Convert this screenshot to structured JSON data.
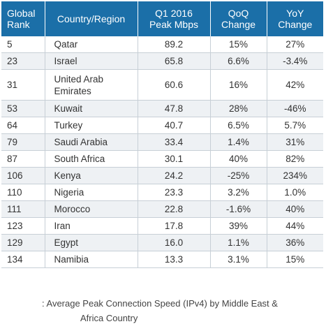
{
  "header": {
    "rank": [
      "Global",
      "Rank"
    ],
    "country": "Country/Region",
    "peak": [
      "Q1 2016",
      "Peak Mbps"
    ],
    "qoq": [
      "QoQ",
      "Change"
    ],
    "yoy": [
      "YoY",
      "Change"
    ]
  },
  "rows": [
    {
      "rank": "5",
      "country": [
        "Qatar"
      ],
      "peak": "89.2",
      "qoq": "15%",
      "yoy": "27%"
    },
    {
      "rank": "23",
      "country": [
        "Israel"
      ],
      "peak": "65.8",
      "qoq": "6.6%",
      "yoy": "-3.4%"
    },
    {
      "rank": "31",
      "country": [
        "United Arab",
        "Emirates"
      ],
      "peak": "60.6",
      "qoq": "16%",
      "yoy": "42%"
    },
    {
      "rank": "53",
      "country": [
        "Kuwait"
      ],
      "peak": "47.8",
      "qoq": "28%",
      "yoy": "-46%"
    },
    {
      "rank": "64",
      "country": [
        "Turkey"
      ],
      "peak": "40.7",
      "qoq": "6.5%",
      "yoy": "5.7%"
    },
    {
      "rank": "79",
      "country": [
        "Saudi Arabia"
      ],
      "peak": "33.4",
      "qoq": "1.4%",
      "yoy": "31%"
    },
    {
      "rank": "87",
      "country": [
        "South Africa"
      ],
      "peak": "30.1",
      "qoq": "40%",
      "yoy": "82%"
    },
    {
      "rank": "106",
      "country": [
        "Kenya"
      ],
      "peak": "24.2",
      "qoq": "-25%",
      "yoy": "234%"
    },
    {
      "rank": "110",
      "country": [
        "Nigeria"
      ],
      "peak": "23.3",
      "qoq": "3.2%",
      "yoy": "1.0%"
    },
    {
      "rank": "111",
      "country": [
        "Morocco"
      ],
      "peak": "22.8",
      "qoq": "-1.6%",
      "yoy": "40%"
    },
    {
      "rank": "123",
      "country": [
        "Iran"
      ],
      "peak": "17.8",
      "qoq": "39%",
      "yoy": "44%"
    },
    {
      "rank": "129",
      "country": [
        "Egypt"
      ],
      "peak": "16.0",
      "qoq": "1.1%",
      "yoy": "36%"
    },
    {
      "rank": "134",
      "country": [
        "Namibia"
      ],
      "peak": "13.3",
      "qoq": "3.1%",
      "yoy": "15%"
    }
  ],
  "caption": [
    ": Average Peak Connection Speed (IPv4) by Middle East &",
    "Africa Country"
  ],
  "colors": {
    "header_bg": "#1b6fa8",
    "header_text": "#ffffff",
    "alt_row_bg": "#eef1f4",
    "grid_line": "#c7cfd6"
  }
}
